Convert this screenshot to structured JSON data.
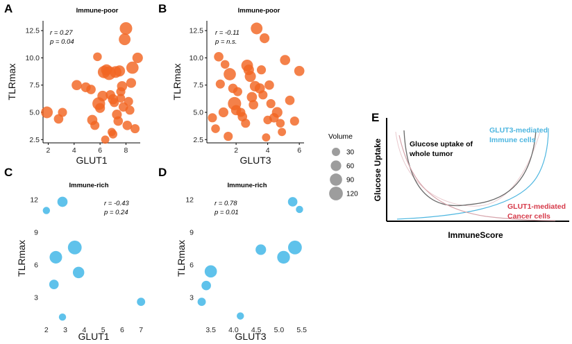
{
  "figure": {
    "panel_e": {
      "letter": "E",
      "xlabel": "ImmuneScore",
      "ylabel": "Glucose Uptake",
      "annotations": {
        "whole_tumor": [
          "Glucose uptake of",
          "whole tumor"
        ],
        "glut3": [
          "GLUT3-mediated",
          "Immune cells"
        ],
        "glut1": [
          "GLUT1-mediated",
          "Cancer cells"
        ]
      },
      "colors": {
        "whole_tumor": "#666666",
        "glut3": "#4db6e0",
        "glut1": "#d63a4a",
        "whole_tumor_text": "#000000"
      }
    },
    "legend": {
      "title": "Volume",
      "entries": [
        {
          "label": "30",
          "value": 30
        },
        {
          "label": "60",
          "value": 60
        },
        {
          "label": "90",
          "value": 90
        },
        {
          "label": "120",
          "value": 120
        }
      ]
    },
    "colors": {
      "immune_poor": "#f26522",
      "immune_rich": "#3cb4e6",
      "legend_marker": "#8c8c8c"
    }
  },
  "chart_data": [
    {
      "id": "A",
      "letter": "A",
      "type": "scatter",
      "title": "Immune-poor",
      "xlabel": "GLUT1",
      "ylabel": "TLRmax",
      "stats": [
        "r = 0.27",
        "p = 0.04"
      ],
      "xlim": [
        1.6,
        9.1
      ],
      "ylim": [
        2.2,
        13.4
      ],
      "xticks": [
        2,
        4,
        6,
        8
      ],
      "yticks": [
        2.5,
        5.0,
        7.5,
        10.0,
        12.5
      ],
      "ytick_labels": [
        "2.5",
        "5.0",
        "7.5",
        "10.0",
        "12.5"
      ],
      "points": [
        {
          "x": 1.9,
          "y": 5.0,
          "v": 80
        },
        {
          "x": 2.8,
          "y": 4.4,
          "v": 45
        },
        {
          "x": 3.1,
          "y": 5.0,
          "v": 40
        },
        {
          "x": 4.2,
          "y": 7.5,
          "v": 55
        },
        {
          "x": 4.9,
          "y": 7.3,
          "v": 50
        },
        {
          "x": 5.3,
          "y": 7.1,
          "v": 45
        },
        {
          "x": 5.4,
          "y": 4.3,
          "v": 55
        },
        {
          "x": 5.6,
          "y": 3.8,
          "v": 40
        },
        {
          "x": 5.9,
          "y": 5.8,
          "v": 100
        },
        {
          "x": 6.0,
          "y": 5.4,
          "v": 50
        },
        {
          "x": 6.2,
          "y": 6.5,
          "v": 60
        },
        {
          "x": 6.3,
          "y": 8.7,
          "v": 90
        },
        {
          "x": 6.5,
          "y": 8.9,
          "v": 70
        },
        {
          "x": 6.7,
          "y": 8.6,
          "v": 120
        },
        {
          "x": 6.8,
          "y": 6.6,
          "v": 45
        },
        {
          "x": 7.0,
          "y": 6.2,
          "v": 55
        },
        {
          "x": 7.1,
          "y": 5.9,
          "v": 40
        },
        {
          "x": 7.2,
          "y": 8.7,
          "v": 80
        },
        {
          "x": 7.3,
          "y": 4.8,
          "v": 50
        },
        {
          "x": 7.4,
          "y": 4.2,
          "v": 45
        },
        {
          "x": 7.5,
          "y": 8.8,
          "v": 70
        },
        {
          "x": 7.6,
          "y": 6.9,
          "v": 40
        },
        {
          "x": 7.7,
          "y": 7.4,
          "v": 55
        },
        {
          "x": 7.8,
          "y": 5.5,
          "v": 45
        },
        {
          "x": 7.9,
          "y": 11.7,
          "v": 80
        },
        {
          "x": 8.0,
          "y": 12.7,
          "v": 95
        },
        {
          "x": 8.1,
          "y": 3.8,
          "v": 45
        },
        {
          "x": 8.2,
          "y": 6.0,
          "v": 40
        },
        {
          "x": 8.4,
          "y": 7.7,
          "v": 50
        },
        {
          "x": 8.5,
          "y": 9.1,
          "v": 90
        },
        {
          "x": 8.7,
          "y": 3.5,
          "v": 40
        },
        {
          "x": 8.9,
          "y": 10.0,
          "v": 60
        },
        {
          "x": 7.0,
          "y": 3.0,
          "v": 35
        },
        {
          "x": 6.4,
          "y": 2.5,
          "v": 30
        },
        {
          "x": 5.8,
          "y": 10.1,
          "v": 35
        },
        {
          "x": 6.9,
          "y": 3.2,
          "v": 30
        },
        {
          "x": 8.3,
          "y": 5.2,
          "v": 40
        },
        {
          "x": 7.6,
          "y": 6.3,
          "v": 35
        }
      ]
    },
    {
      "id": "B",
      "letter": "B",
      "type": "scatter",
      "title": "Immune-poor",
      "xlabel": "GLUT3",
      "ylabel": "TLRmax",
      "stats": [
        "r = -0.11",
        "p = n.s."
      ],
      "xlim": [
        0.15,
        6.3
      ],
      "ylim": [
        2.2,
        13.4
      ],
      "xticks": [
        2,
        4,
        6
      ],
      "yticks": [
        2.5,
        5.0,
        7.5,
        10.0,
        12.5
      ],
      "ytick_labels": [
        "2.5",
        "5.0",
        "7.5",
        "10.0",
        "12.5"
      ],
      "points": [
        {
          "x": 0.5,
          "y": 4.5,
          "v": 40
        },
        {
          "x": 0.9,
          "y": 10.1,
          "v": 45
        },
        {
          "x": 1.0,
          "y": 7.6,
          "v": 40
        },
        {
          "x": 1.2,
          "y": 5.0,
          "v": 50
        },
        {
          "x": 1.3,
          "y": 9.4,
          "v": 35
        },
        {
          "x": 1.6,
          "y": 8.5,
          "v": 90
        },
        {
          "x": 1.8,
          "y": 7.2,
          "v": 45
        },
        {
          "x": 1.9,
          "y": 5.8,
          "v": 110
        },
        {
          "x": 2.0,
          "y": 5.2,
          "v": 55
        },
        {
          "x": 2.1,
          "y": 6.9,
          "v": 40
        },
        {
          "x": 2.4,
          "y": 4.6,
          "v": 45
        },
        {
          "x": 2.6,
          "y": 4.0,
          "v": 40
        },
        {
          "x": 2.7,
          "y": 9.3,
          "v": 80
        },
        {
          "x": 2.8,
          "y": 8.9,
          "v": 60
        },
        {
          "x": 2.9,
          "y": 8.3,
          "v": 70
        },
        {
          "x": 3.0,
          "y": 6.4,
          "v": 55
        },
        {
          "x": 3.1,
          "y": 5.7,
          "v": 45
        },
        {
          "x": 3.2,
          "y": 7.4,
          "v": 60
        },
        {
          "x": 3.3,
          "y": 12.7,
          "v": 80
        },
        {
          "x": 3.5,
          "y": 7.2,
          "v": 55
        },
        {
          "x": 3.6,
          "y": 8.9,
          "v": 40
        },
        {
          "x": 3.7,
          "y": 6.6,
          "v": 40
        },
        {
          "x": 3.8,
          "y": 11.8,
          "v": 50
        },
        {
          "x": 4.0,
          "y": 4.3,
          "v": 35
        },
        {
          "x": 4.2,
          "y": 5.8,
          "v": 40
        },
        {
          "x": 4.4,
          "y": 4.5,
          "v": 45
        },
        {
          "x": 4.6,
          "y": 5.0,
          "v": 60
        },
        {
          "x": 4.8,
          "y": 4.0,
          "v": 35
        },
        {
          "x": 4.9,
          "y": 3.2,
          "v": 30
        },
        {
          "x": 5.1,
          "y": 9.8,
          "v": 55
        },
        {
          "x": 5.4,
          "y": 6.1,
          "v": 45
        },
        {
          "x": 5.7,
          "y": 4.2,
          "v": 40
        },
        {
          "x": 6.0,
          "y": 8.8,
          "v": 55
        },
        {
          "x": 1.5,
          "y": 2.8,
          "v": 40
        },
        {
          "x": 0.7,
          "y": 3.5,
          "v": 35
        },
        {
          "x": 3.9,
          "y": 2.7,
          "v": 30
        },
        {
          "x": 2.3,
          "y": 5.0,
          "v": 40
        },
        {
          "x": 4.1,
          "y": 7.5,
          "v": 45
        }
      ]
    },
    {
      "id": "C",
      "letter": "C",
      "type": "scatter",
      "title": "Immune-rich",
      "xlabel": "GLUT1",
      "ylabel": "TLRmax",
      "stats": [
        "r = -0.43",
        "p = 0.24"
      ],
      "xlim": [
        1.75,
        7.25
      ],
      "ylim": [
        0.7,
        12.5
      ],
      "xticks": [
        2,
        3,
        4,
        5,
        6,
        7
      ],
      "yticks": [
        3,
        6,
        9,
        12
      ],
      "ytick_labels": [
        "3",
        "6",
        "9",
        "12"
      ],
      "points": [
        {
          "x": 2.0,
          "y": 11.0,
          "v": 20
        },
        {
          "x": 2.85,
          "y": 11.8,
          "v": 55
        },
        {
          "x": 2.4,
          "y": 4.2,
          "v": 45
        },
        {
          "x": 2.5,
          "y": 6.7,
          "v": 95
        },
        {
          "x": 2.85,
          "y": 1.2,
          "v": 20
        },
        {
          "x": 3.5,
          "y": 7.6,
          "v": 120
        },
        {
          "x": 3.7,
          "y": 5.3,
          "v": 75
        },
        {
          "x": 7.0,
          "y": 2.6,
          "v": 30
        }
      ]
    },
    {
      "id": "D",
      "letter": "D",
      "type": "scatter",
      "title": "Immune-rich",
      "xlabel": "GLUT3",
      "ylabel": "TLRmax",
      "stats": [
        "r = 0.78",
        "p = 0.01"
      ],
      "xlim": [
        3.2,
        5.55
      ],
      "ylim": [
        0.7,
        12.5
      ],
      "xticks": [
        3.5,
        4.0,
        4.5,
        5.0,
        5.5
      ],
      "xtick_labels": [
        "3.5",
        "4.0",
        "4.5",
        "5.0",
        "5.5"
      ],
      "yticks": [
        3,
        6,
        9,
        12
      ],
      "ytick_labels": [
        "3",
        "6",
        "9",
        "12"
      ],
      "points": [
        {
          "x": 3.3,
          "y": 2.6,
          "v": 30
        },
        {
          "x": 3.4,
          "y": 4.1,
          "v": 45
        },
        {
          "x": 3.5,
          "y": 5.4,
          "v": 90
        },
        {
          "x": 4.15,
          "y": 1.3,
          "v": 20
        },
        {
          "x": 4.6,
          "y": 7.4,
          "v": 60
        },
        {
          "x": 5.1,
          "y": 6.7,
          "v": 100
        },
        {
          "x": 5.35,
          "y": 7.6,
          "v": 120
        },
        {
          "x": 5.3,
          "y": 11.8,
          "v": 45
        },
        {
          "x": 5.45,
          "y": 11.1,
          "v": 20
        }
      ]
    }
  ]
}
